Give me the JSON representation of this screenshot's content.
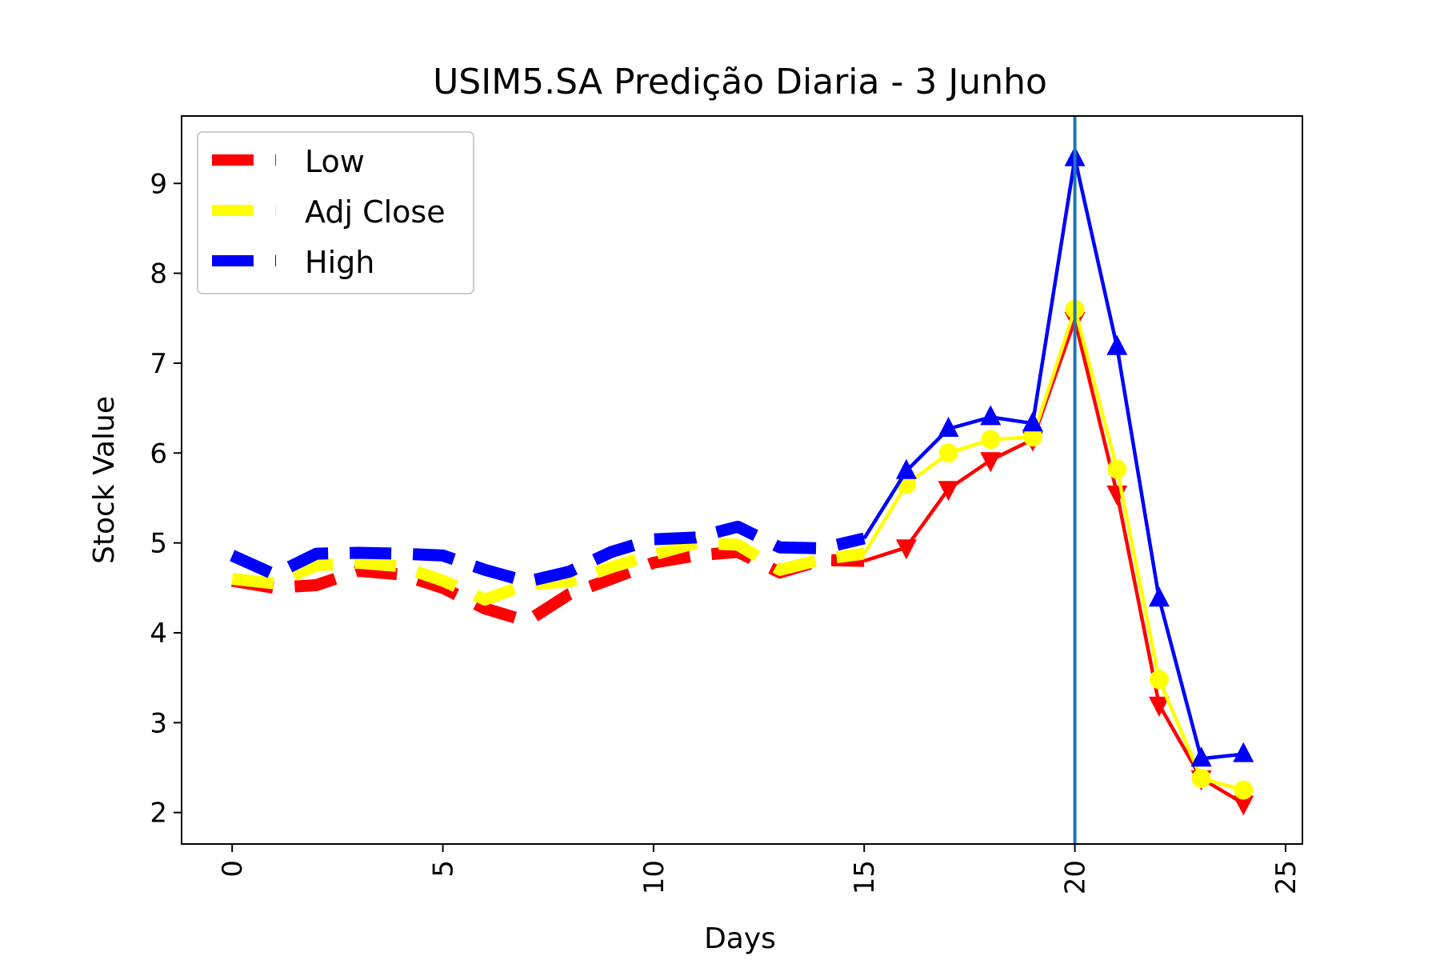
{
  "chart_data": {
    "type": "line",
    "title": "USIM5.SA Predição Diaria - 3 Junho",
    "xlabel": "Days",
    "ylabel": "Stock Value",
    "xlim": [
      -1.2,
      25.4
    ],
    "ylim": [
      1.65,
      9.75
    ],
    "xticks": [
      0,
      5,
      10,
      15,
      20,
      25
    ],
    "yticks": [
      2,
      3,
      4,
      5,
      6,
      7,
      8,
      9
    ],
    "grid": false,
    "legend": "top-left",
    "vline_x": 20,
    "vline_color": "#1f77b4",
    "series": [
      {
        "name": "Low",
        "color": "#ff0000",
        "historical_x": [
          0,
          1,
          2,
          3,
          4,
          5,
          6,
          7,
          8,
          9,
          10,
          11,
          12,
          13,
          14,
          15
        ],
        "historical_y": [
          4.58,
          4.5,
          4.53,
          4.69,
          4.65,
          4.5,
          4.27,
          4.13,
          4.43,
          4.6,
          4.78,
          4.86,
          4.9,
          4.67,
          4.81,
          4.8
        ],
        "predicted_x": [
          15,
          16,
          17,
          18,
          19,
          20,
          21,
          22,
          23,
          24
        ],
        "predicted_y": [
          4.8,
          4.95,
          5.6,
          5.92,
          6.15,
          7.48,
          5.55,
          3.2,
          2.38,
          2.1
        ],
        "marker": "triangle-down"
      },
      {
        "name": "Adj Close",
        "color": "#ffff00",
        "historical_x": [
          0,
          1,
          2,
          3,
          4,
          5,
          6,
          7,
          8,
          9,
          10,
          11,
          12,
          13,
          14,
          15
        ],
        "historical_y": [
          4.6,
          4.55,
          4.75,
          4.78,
          4.74,
          4.58,
          4.37,
          4.54,
          4.57,
          4.73,
          4.87,
          5.0,
          4.98,
          4.7,
          4.82,
          4.88
        ],
        "predicted_x": [
          15,
          16,
          17,
          18,
          19,
          20,
          21,
          22,
          23,
          24
        ],
        "predicted_y": [
          4.88,
          5.65,
          6.0,
          6.15,
          6.18,
          7.6,
          5.82,
          3.48,
          2.38,
          2.25
        ],
        "marker": "circle"
      },
      {
        "name": "High",
        "color": "#0000ff",
        "historical_x": [
          0,
          1,
          2,
          3,
          4,
          5,
          6,
          7,
          8,
          9,
          10,
          11,
          12,
          13,
          14,
          15
        ],
        "historical_y": [
          4.86,
          4.65,
          4.88,
          4.89,
          4.88,
          4.86,
          4.7,
          4.57,
          4.68,
          4.9,
          5.04,
          5.06,
          5.18,
          4.95,
          4.94,
          5.05
        ],
        "predicted_x": [
          15,
          16,
          17,
          18,
          19,
          20,
          21,
          22,
          23,
          24
        ],
        "predicted_y": [
          5.05,
          5.8,
          6.27,
          6.4,
          6.33,
          9.28,
          7.18,
          4.38,
          2.6,
          2.65
        ],
        "marker": "triangle-up"
      }
    ]
  }
}
